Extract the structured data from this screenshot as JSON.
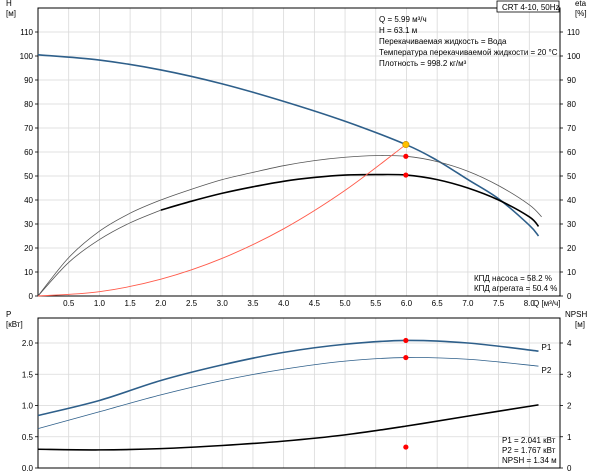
{
  "chart_data": [
    {
      "type": "line",
      "title": "CRT 4-10, 50Hz",
      "xlabel": "Q [м³/ч]",
      "ylabel_left": "H [м]",
      "ylabel_right": "eta [%]",
      "xlim": [
        0,
        8.5
      ],
      "ylim": [
        0,
        120
      ],
      "ylim_right": [
        0,
        120
      ],
      "grid": true,
      "x_ticks": [
        "0.5",
        "1.0",
        "1.5",
        "2.0",
        "2.5",
        "3.0",
        "3.5",
        "4.0",
        "4.5",
        "5.0",
        "5.5",
        "6.0",
        "6.5",
        "7.0",
        "7.5",
        "8.0"
      ],
      "x_tick_values": [
        0.5,
        1.0,
        1.5,
        2.0,
        2.5,
        3.0,
        3.5,
        4.0,
        4.5,
        5.0,
        5.5,
        6.0,
        6.5,
        7.0,
        7.5,
        8.0
      ],
      "y_ticks_left": [
        "0",
        "10",
        "20",
        "30",
        "40",
        "50",
        "60",
        "70",
        "80",
        "90",
        "100",
        "110"
      ],
      "y_ticks_right": [
        "0",
        "10",
        "20",
        "30",
        "40",
        "50",
        "60",
        "70",
        "80",
        "90",
        "100",
        "110"
      ],
      "info": [
        "Q = 5.99 м³/ч",
        "H = 63.1 м",
        "Перекачиваемая жидкость = Вода",
        "Температура перекачиваемой жидкости = 20 °C",
        "Плотность = 998.2 кг/м³"
      ],
      "efficiency_labels": [
        "КПД насоса = 58.2 %",
        "КПД агрегата = 50.4 %"
      ],
      "series": [
        {
          "key": "head",
          "color": "#2e5f8a",
          "width": 1.6,
          "x": [
            0,
            1,
            2,
            3,
            4,
            5,
            5.99,
            6.5,
            7,
            7.5,
            8,
            8.15
          ],
          "values": [
            100.5,
            98.3,
            94.2,
            88.4,
            81.1,
            72.8,
            63.1,
            56.5,
            48.5,
            40.5,
            29.5,
            25
          ]
        },
        {
          "key": "pump-efficiency-thin",
          "color": "#555555",
          "width": 0.8,
          "x": [
            0,
            0.5,
            1,
            1.5,
            2,
            2.5,
            3,
            3.5,
            4,
            4.5,
            5,
            5.5,
            6,
            6.5,
            7,
            7.5,
            8,
            8.2
          ],
          "values": [
            0,
            16,
            27,
            34.5,
            40,
            44.5,
            48.5,
            51.5,
            54.3,
            56.4,
            57.8,
            58.5,
            58.2,
            56,
            52,
            46,
            38,
            33
          ]
        },
        {
          "key": "unit-efficiency-thin",
          "color": "#555555",
          "width": 0.8,
          "x": [
            0,
            0.5,
            1,
            1.5,
            2
          ],
          "values": [
            0,
            14,
            23.5,
            30.5,
            35.8
          ]
        },
        {
          "key": "unit-efficiency",
          "color": "#000000",
          "width": 1.6,
          "x": [
            2,
            2.5,
            3,
            3.5,
            4,
            4.5,
            5,
            5.5,
            6,
            6.5,
            7,
            7.5,
            8,
            8.15
          ],
          "values": [
            35.8,
            39.5,
            42.8,
            45.5,
            47.8,
            49.4,
            50.4,
            50.6,
            50.4,
            48.5,
            45,
            40,
            33,
            29
          ]
        },
        {
          "key": "system-curve",
          "color": "#ff5a4a",
          "width": 0.9,
          "x": [
            0,
            1,
            2,
            3,
            4,
            5,
            5.99
          ],
          "values": [
            0,
            1.8,
            7,
            15.7,
            28,
            44,
            63.1
          ]
        }
      ],
      "markers": [
        {
          "x": 5.99,
          "y": 63.1,
          "color": "#ffc000"
        },
        {
          "x": 5.99,
          "y": 58.2,
          "color": "#ff0000"
        },
        {
          "x": 5.99,
          "y": 50.4,
          "color": "#ff0000"
        }
      ]
    },
    {
      "type": "line",
      "ylabel_left": "P [кВт]",
      "ylabel_right": "NPSH [м]",
      "xlim": [
        0,
        8.5
      ],
      "ylim": [
        0,
        2.4
      ],
      "ylim_right": [
        0,
        4.8
      ],
      "grid": true,
      "y_ticks_left": [
        "0.0",
        "0.5",
        "1.0",
        "1.5",
        "2.0"
      ],
      "y_ticks_right": [
        "0",
        "1",
        "2",
        "3",
        "4"
      ],
      "info": [
        "P1 = 2.041 кВт",
        "P2 = 1.767 кВт",
        "NPSH = 1.34 м"
      ],
      "series": [
        {
          "key": "P1",
          "name": "P1",
          "color": "#2e5f8a",
          "width": 1.6,
          "x": [
            0,
            1,
            2,
            3,
            4,
            5,
            5.99,
            7,
            8.15
          ],
          "values": [
            0.84,
            1.08,
            1.4,
            1.65,
            1.85,
            1.98,
            2.041,
            2.0,
            1.87
          ]
        },
        {
          "key": "P2",
          "name": "P2",
          "color": "#2e5f8a",
          "width": 0.8,
          "x": [
            0,
            1,
            2,
            3,
            4,
            5,
            5.99,
            7,
            8.15
          ],
          "values": [
            0.63,
            0.9,
            1.17,
            1.4,
            1.58,
            1.71,
            1.767,
            1.74,
            1.63
          ],
          "axis": "left"
        },
        {
          "key": "NPSH",
          "color": "#000000",
          "width": 1.6,
          "x": [
            0,
            1,
            2,
            3,
            4,
            5,
            5.99,
            7,
            8.15
          ],
          "values": [
            0.6,
            0.58,
            0.62,
            0.72,
            0.86,
            1.06,
            1.34,
            1.66,
            2.02
          ],
          "axis": "right"
        }
      ],
      "markers": [
        {
          "x": 5.99,
          "y": 2.041,
          "color": "#ff0000"
        },
        {
          "x": 5.99,
          "y": 1.767,
          "color": "#ff0000"
        },
        {
          "x": 5.99,
          "y": 0.67,
          "color": "#ff0000"
        }
      ]
    }
  ]
}
